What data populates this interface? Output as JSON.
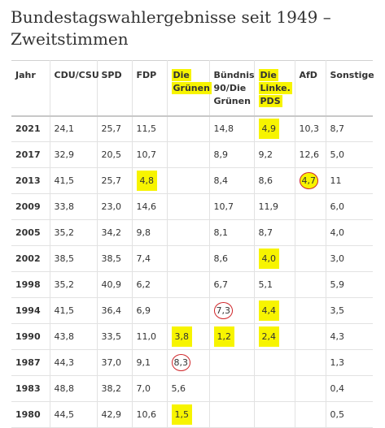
{
  "title": "Bundestagswahlergebnisse seit 1949 – Zweitstimmen",
  "headers": [
    "Jahr",
    "CDU/CSU",
    "SPD",
    "FDP",
    "Die Grünen",
    "Bündnis 90/Die Grünen",
    "Die Linke. PDS",
    "AfD",
    "Sonstige"
  ],
  "header_lines": [
    [
      "Jahr"
    ],
    [
      "CDU/CSU"
    ],
    [
      "SPD"
    ],
    [
      "FDP"
    ],
    [
      "Die",
      "Grünen"
    ],
    [
      "Bündnis",
      "90/Die",
      "Grünen"
    ],
    [
      "Die",
      "Linke.",
      "PDS"
    ],
    [
      "AfD"
    ],
    [
      "Sonstige"
    ]
  ],
  "highlighted_headers": [
    4,
    6
  ],
  "rows": [
    {
      "year": "2021",
      "cells": [
        "24,1",
        "25,7",
        "11,5",
        "",
        "14,8",
        "4,9",
        "10,3",
        "8,7"
      ]
    },
    {
      "year": "2017",
      "cells": [
        "32,9",
        "20,5",
        "10,7",
        "",
        "8,9",
        "9,2",
        "12,6",
        "5,0"
      ]
    },
    {
      "year": "2013",
      "cells": [
        "41,5",
        "25,7",
        "4,8",
        "",
        "8,4",
        "8,6",
        "4,7",
        "11"
      ]
    },
    {
      "year": "2009",
      "cells": [
        "33,8",
        "23,0",
        "14,6",
        "",
        "10,7",
        "11,9",
        "",
        "6,0"
      ]
    },
    {
      "year": "2005",
      "cells": [
        "35,2",
        "34,2",
        "9,8",
        "",
        "8,1",
        "8,7",
        "",
        "4,0"
      ]
    },
    {
      "year": "2002",
      "cells": [
        "38,5",
        "38,5",
        "7,4",
        "",
        "8,6",
        "4,0",
        "",
        "3,0"
      ]
    },
    {
      "year": "1998",
      "cells": [
        "35,2",
        "40,9",
        "6,2",
        "",
        "6,7",
        "5,1",
        "",
        "5,9"
      ]
    },
    {
      "year": "1994",
      "cells": [
        "41,5",
        "36,4",
        "6,9",
        "",
        "7,3",
        "4,4",
        "",
        "3,5"
      ]
    },
    {
      "year": "1990",
      "cells": [
        "43,8",
        "33,5",
        "11,0",
        "3,8",
        "1,2",
        "2,4",
        "",
        "4,3"
      ]
    },
    {
      "year": "1987",
      "cells": [
        "44,3",
        "37,0",
        "9,1",
        "8,3",
        "",
        "",
        "",
        "1,3"
      ]
    },
    {
      "year": "1983",
      "cells": [
        "48,8",
        "38,2",
        "7,0",
        "5,6",
        "",
        "",
        "",
        "0,4"
      ]
    },
    {
      "year": "1980",
      "cells": [
        "44,5",
        "42,9",
        "10,6",
        "1,5",
        "",
        "",
        "",
        "0,5"
      ]
    }
  ],
  "marks": {
    "highlight": [
      [
        0,
        5
      ],
      [
        2,
        2
      ],
      [
        5,
        5
      ],
      [
        7,
        5
      ],
      [
        8,
        3
      ],
      [
        8,
        4
      ],
      [
        8,
        5
      ],
      [
        11,
        3
      ]
    ],
    "circle": [
      [
        2,
        6
      ],
      [
        7,
        4
      ],
      [
        9,
        3
      ]
    ],
    "highlight_circle": [
      [
        2,
        6
      ]
    ]
  },
  "colors": {
    "highlight": "#f7f400",
    "circle": "#d0262a"
  }
}
